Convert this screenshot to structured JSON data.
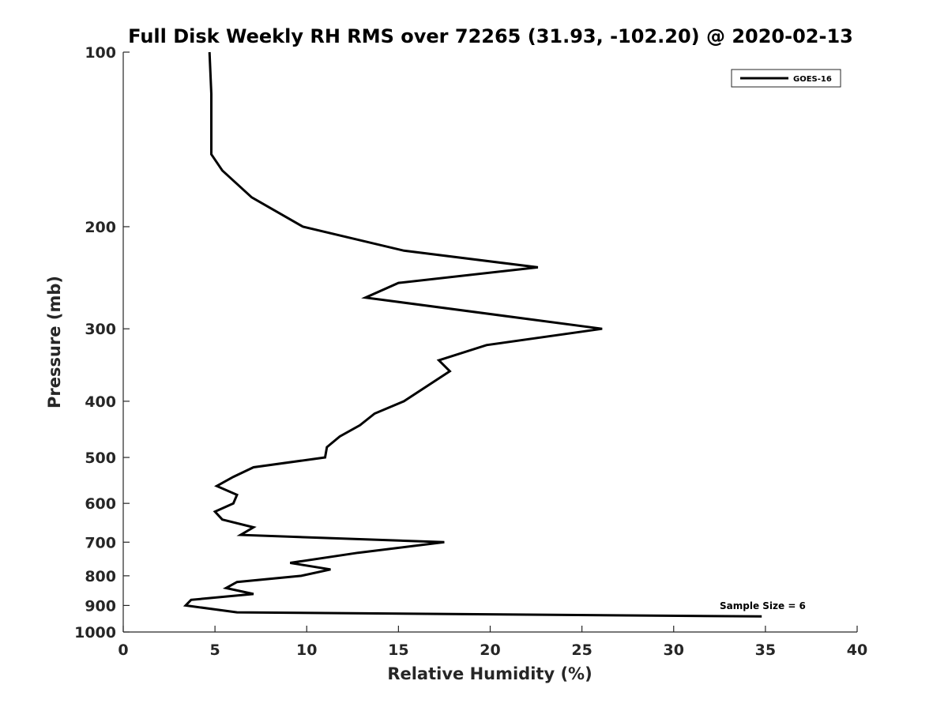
{
  "chart_data": {
    "type": "line",
    "title": "Full Disk Weekly RH RMS over 72265 (31.93, -102.20) @ 2020-02-13",
    "xlabel": "Relative Humidity (%)",
    "ylabel": "Pressure (mb)",
    "xlim": [
      0,
      40
    ],
    "ylim": [
      100,
      1000
    ],
    "yscale": "log",
    "y_reversed": true,
    "xticks": [
      0,
      5,
      10,
      15,
      20,
      25,
      30,
      35,
      40
    ],
    "yticks": [
      100,
      200,
      300,
      400,
      500,
      600,
      700,
      800,
      900,
      1000
    ],
    "grid": false,
    "legend_position": "top-right",
    "series": [
      {
        "name": "GOES-16",
        "color": "#000000",
        "x": [
          4.7,
          4.8,
          4.8,
          4.8,
          5.4,
          7.0,
          9.8,
          15.3,
          22.6,
          15.0,
          13.2,
          26.1,
          19.8,
          17.2,
          17.8,
          15.3,
          13.7,
          12.9,
          11.8,
          11.1,
          11.0,
          7.1,
          6.0,
          5.1,
          6.2,
          6.0,
          5.0,
          5.4,
          7.1,
          6.4,
          17.5,
          12.8,
          9.1,
          11.3,
          9.7,
          6.2,
          5.6,
          7.1,
          3.7,
          3.4,
          6.2,
          34.8
        ],
        "y": [
          100,
          118,
          134,
          150,
          160,
          178,
          200,
          220,
          235,
          250,
          265,
          300,
          320,
          340,
          355,
          400,
          420,
          440,
          460,
          480,
          500,
          520,
          540,
          560,
          580,
          600,
          620,
          640,
          660,
          680,
          700,
          730,
          760,
          780,
          800,
          820,
          840,
          860,
          880,
          900,
          925,
          940
        ]
      }
    ],
    "annotation": "Sample Size = 6"
  }
}
